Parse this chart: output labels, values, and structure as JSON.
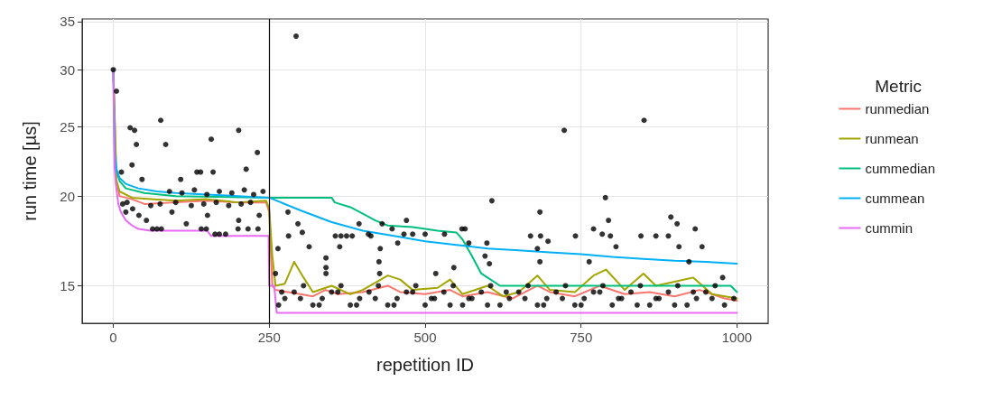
{
  "chart_data": {
    "type": "line",
    "xlabel": "repetition ID",
    "ylabel": "run time [µs]",
    "legend_title": "Metric",
    "legend": "right",
    "grid": true,
    "log": "y",
    "marker": "none",
    "line_style": "solid",
    "xlim": [
      -50,
      1050
    ],
    "xticks": [
      0,
      250,
      500,
      750,
      1000
    ],
    "ylim": [
      13.3,
      35.3
    ],
    "yticks": [
      15,
      20,
      25,
      30,
      35
    ],
    "ref_lines": [
      {
        "axis": "x",
        "value": 250,
        "color": "#000000"
      }
    ],
    "series": [
      {
        "type": "scatter",
        "color": "#000000",
        "x": [
          0,
          5,
          27,
          34,
          37,
          76,
          84,
          157,
          201,
          231,
          30,
          213,
          134,
          140,
          160,
          108,
          46,
          13,
          90,
          110,
          130,
          150,
          170,
          190,
          210,
          225,
          240,
          15,
          22,
          60,
          75,
          100,
          125,
          145,
          165,
          185,
          205,
          220,
          20,
          53,
          94,
          151,
          201,
          234,
          117,
          63,
          70,
          77,
          141,
          149,
          163,
          170,
          180,
          200,
          216,
          232,
          41,
          31,
          293,
          607,
          280,
          296,
          303,
          281,
          314,
          264,
          356,
          365,
          374,
          383,
          363,
          394,
          409,
          413,
          431,
          428,
          456,
          470,
          447,
          466,
          480,
          500,
          531,
          559,
          564,
          570,
          599,
          426,
          341,
          341,
          546,
          517,
          596,
          603,
          427,
          341,
          260,
          723,
          851,
          789,
          684,
          794,
          894,
          904,
          933,
          770,
          784,
          797,
          806,
          669,
          685,
          697,
          741,
          846,
          870,
          890,
          907,
          944,
          680,
          684,
          923,
          763,
          977,
          265,
          275,
          290,
          305,
          320,
          335,
          350,
          365,
          380,
          395,
          410,
          425,
          440,
          455,
          470,
          485,
          500,
          515,
          530,
          545,
          560,
          575,
          590,
          605,
          620,
          635,
          650,
          665,
          680,
          695,
          710,
          725,
          740,
          755,
          770,
          785,
          800,
          815,
          830,
          845,
          860,
          875,
          890,
          905,
          920,
          935,
          950,
          965,
          980,
          995,
          270,
          300,
          330,
          360,
          390,
          420,
          450,
          480,
          510,
          540,
          570,
          600,
          630,
          660,
          690,
          720,
          750,
          780,
          810,
          840,
          870,
          900,
          930,
          960
        ],
        "values": [
          30,
          28,
          24.9,
          24.7,
          23.6,
          25.5,
          23.6,
          24.0,
          24.7,
          23.0,
          22.1,
          21.8,
          21.6,
          21.6,
          21.6,
          21.1,
          21.1,
          21.6,
          20.3,
          20.2,
          20.4,
          20.1,
          20.3,
          20.2,
          20.4,
          20.1,
          20.3,
          19.5,
          19.6,
          19.4,
          19.5,
          19.6,
          19.4,
          19.5,
          19.6,
          19.4,
          19.5,
          19.6,
          19.0,
          18.5,
          19.0,
          18.8,
          18.5,
          18.8,
          18.3,
          18.0,
          18.0,
          18.0,
          18.0,
          18.0,
          17.7,
          17.7,
          17.7,
          18.0,
          18.0,
          18.0,
          18.8,
          19.2,
          33.4,
          19.7,
          19.0,
          18.3,
          17.8,
          17.6,
          17.0,
          16.9,
          17.6,
          17.6,
          17.6,
          17.6,
          17.0,
          18.3,
          17.7,
          17.6,
          18.3,
          16.9,
          17.2,
          18.5,
          18.0,
          17.7,
          17.7,
          17.7,
          17.7,
          18.0,
          18.0,
          17.2,
          17.2,
          16.2,
          16.4,
          15.9,
          15.9,
          15.6,
          16.5,
          16.1,
          15.6,
          15.6,
          15.6,
          24.7,
          25.5,
          19.9,
          19.0,
          18.5,
          18.7,
          18.3,
          18.0,
          18.0,
          17.7,
          17.6,
          17.0,
          17.6,
          17.6,
          17.3,
          17.6,
          17.6,
          17.6,
          17.6,
          17.0,
          17.0,
          16.9,
          16.2,
          16.2,
          16.2,
          15.4,
          14.1,
          14.4,
          14.7,
          15.0,
          14.1,
          14.4,
          14.7,
          15.0,
          14.1,
          14.4,
          14.7,
          15.0,
          14.1,
          14.4,
          14.7,
          15.0,
          14.1,
          14.4,
          14.7,
          15.0,
          14.1,
          14.4,
          14.7,
          15.0,
          14.1,
          14.4,
          14.7,
          15.0,
          14.1,
          14.4,
          14.7,
          15.0,
          14.1,
          14.4,
          14.7,
          15.0,
          14.1,
          14.4,
          14.7,
          15.0,
          14.1,
          14.4,
          14.7,
          15.0,
          14.1,
          14.4,
          14.7,
          15.0,
          14.1,
          14.4,
          14.7,
          14.4,
          14.1,
          14.7,
          14.1,
          14.4,
          14.1,
          14.7,
          14.4,
          14.1,
          14.4,
          14.1,
          14.7,
          14.4,
          14.1,
          14.4,
          14.1,
          14.7,
          14.4,
          14.1,
          14.4,
          14.1,
          14.7,
          14.4
        ]
      },
      {
        "name": "runmedian",
        "color": "#f8766d",
        "x": [
          0,
          5,
          10,
          30,
          50,
          100,
          150,
          200,
          245,
          250,
          255,
          260,
          280,
          300,
          320,
          340,
          360,
          400,
          440,
          460,
          500,
          540,
          560,
          600,
          640,
          680,
          700,
          740,
          780,
          820,
          860,
          900,
          940,
          980,
          1000
        ],
        "values": [
          30,
          21,
          20,
          19.8,
          19.5,
          19.6,
          19.7,
          19.6,
          19.6,
          19.0,
          15.0,
          14.8,
          14.7,
          14.6,
          14.5,
          14.8,
          14.6,
          14.7,
          15.0,
          14.7,
          14.6,
          14.8,
          14.5,
          14.7,
          14.4,
          15.0,
          14.7,
          14.5,
          15.0,
          14.6,
          14.7,
          14.5,
          14.8,
          14.4,
          14.3
        ]
      },
      {
        "name": "runmean",
        "color": "#a3a500",
        "x": [
          0,
          5,
          10,
          30,
          60,
          100,
          150,
          200,
          245,
          250,
          255,
          260,
          275,
          290,
          305,
          320,
          350,
          380,
          400,
          440,
          460,
          480,
          520,
          540,
          560,
          600,
          625,
          650,
          680,
          700,
          740,
          770,
          790,
          820,
          850,
          870,
          900,
          930,
          960,
          1000
        ],
        "values": [
          30,
          21,
          20.3,
          19.9,
          19.8,
          19.7,
          19.8,
          19.6,
          19.7,
          19.2,
          16.5,
          15.0,
          15.1,
          16.2,
          15.4,
          14.7,
          15.0,
          14.6,
          14.8,
          15.5,
          15.3,
          14.8,
          14.9,
          15.3,
          14.6,
          15.0,
          14.5,
          14.7,
          15.5,
          14.8,
          14.7,
          15.5,
          15.8,
          14.8,
          15.6,
          15.0,
          15.2,
          15.4,
          14.6,
          14.4
        ]
      },
      {
        "name": "cummedian",
        "color": "#00bf7d",
        "x": [
          0,
          3,
          10,
          20,
          50,
          100,
          250,
          350,
          355,
          380,
          400,
          420,
          440,
          480,
          520,
          550,
          560,
          575,
          590,
          600,
          620,
          700,
          800,
          990,
          1000
        ],
        "values": [
          30,
          22,
          21,
          20.5,
          20.2,
          20.0,
          19.9,
          19.9,
          19.6,
          19.3,
          18.9,
          18.5,
          18.2,
          18.1,
          17.9,
          17.8,
          17.4,
          16.5,
          15.6,
          15.4,
          15.0,
          15.0,
          15.0,
          15.0,
          14.7
        ]
      },
      {
        "name": "cummean",
        "color": "#00b0f6",
        "x": [
          0,
          2,
          5,
          10,
          20,
          40,
          70,
          100,
          150,
          200,
          250,
          300,
          350,
          400,
          450,
          500,
          550,
          600,
          650,
          700,
          750,
          800,
          850,
          900,
          950,
          1000
        ],
        "values": [
          30,
          23,
          21.8,
          21.2,
          20.8,
          20.5,
          20.3,
          20.2,
          20.1,
          20.0,
          19.9,
          19.1,
          18.4,
          17.9,
          17.6,
          17.3,
          17.1,
          16.9,
          16.8,
          16.7,
          16.6,
          16.45,
          16.35,
          16.25,
          16.2,
          16.1
        ]
      },
      {
        "name": "cummin",
        "color": "#e76bf3",
        "x": [
          0,
          2,
          4,
          8,
          12,
          20,
          30,
          40,
          60,
          100,
          150,
          157,
          240,
          249,
          250,
          258,
          262,
          1000
        ],
        "values": [
          30,
          22,
          20.8,
          19.5,
          19.0,
          18.5,
          18.2,
          18.0,
          17.9,
          17.9,
          17.9,
          17.6,
          17.6,
          17.6,
          15.0,
          15.0,
          13.75,
          13.75
        ]
      }
    ]
  }
}
